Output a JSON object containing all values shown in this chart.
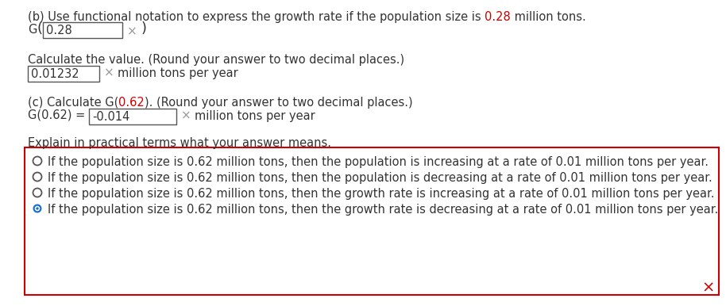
{
  "bg_color": "#ffffff",
  "text_color": "#333333",
  "red_color": "#cc0000",
  "gray_color": "#999999",
  "blue_color": "#1a6fcc",
  "black_color": "#222222",
  "border_red": "#cc0000",
  "box_edge": "#555555",
  "line1_pre": "(b) Use functional notation to express the growth rate if the population size is ",
  "line1_hl": "0.28",
  "line1_post": " million tons.",
  "g_text": "G",
  "box1_val": "0.28",
  "line2": "Calculate the value. (Round your answer to two decimal places.)",
  "box2_val": "0.01232",
  "unit1": "million tons per year",
  "line3_pre": "(c) Calculate G(",
  "line3_hl": "0.62",
  "line3_post": "). (Round your answer to two decimal places.)",
  "line4_pre": "G(0.62) = ",
  "box3_val": "-0.014",
  "unit2": "million tons per year",
  "explain": "Explain in practical terms what your answer means.",
  "choices": [
    "If the population size is 0.62 million tons, then the population is increasing at a rate of 0.01 million tons per year.",
    "If the population size is 0.62 million tons, then the population is decreasing at a rate of 0.01 million tons per year.",
    "If the population size is 0.62 million tons, then the growth rate is increasing at a rate of 0.01 million tons per year.",
    "If the population size is 0.62 million tons, then the growth rate is decreasing at a rate of 0.01 million tons per year."
  ],
  "selected": 3,
  "fs_main": 10.5,
  "fs_paren": 13,
  "fs_cross": 11,
  "fs_radio_cross": 14
}
